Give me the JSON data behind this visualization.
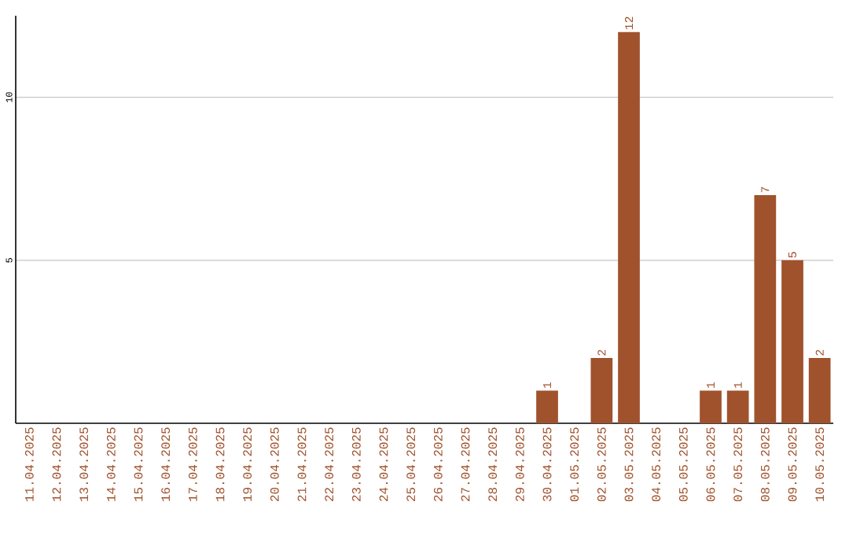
{
  "chart_data": {
    "type": "bar",
    "categories": [
      "11.04.2025",
      "12.04.2025",
      "13.04.2025",
      "14.04.2025",
      "15.04.2025",
      "16.04.2025",
      "17.04.2025",
      "18.04.2025",
      "19.04.2025",
      "20.04.2025",
      "21.04.2025",
      "22.04.2025",
      "23.04.2025",
      "24.04.2025",
      "25.04.2025",
      "26.04.2025",
      "27.04.2025",
      "28.04.2025",
      "29.04.2025",
      "30.04.2025",
      "01.05.2025",
      "02.05.2025",
      "03.05.2025",
      "04.05.2025",
      "05.05.2025",
      "06.05.2025",
      "07.05.2025",
      "08.05.2025",
      "09.05.2025",
      "10.05.2025"
    ],
    "values": [
      0,
      0,
      0,
      0,
      0,
      0,
      0,
      0,
      0,
      0,
      0,
      0,
      0,
      0,
      0,
      0,
      0,
      0,
      0,
      1,
      0,
      2,
      12,
      0,
      0,
      1,
      1,
      7,
      5,
      2
    ],
    "value_labels": [
      null,
      null,
      null,
      null,
      null,
      null,
      null,
      null,
      null,
      null,
      null,
      null,
      null,
      null,
      null,
      null,
      null,
      null,
      null,
      "1",
      null,
      "2",
      "12",
      null,
      null,
      "1",
      "1",
      "7",
      "5",
      "2"
    ],
    "color": "#a0522d",
    "ylim": [
      0,
      12.5
    ],
    "yticks": [
      5,
      10
    ],
    "grid": "y"
  }
}
